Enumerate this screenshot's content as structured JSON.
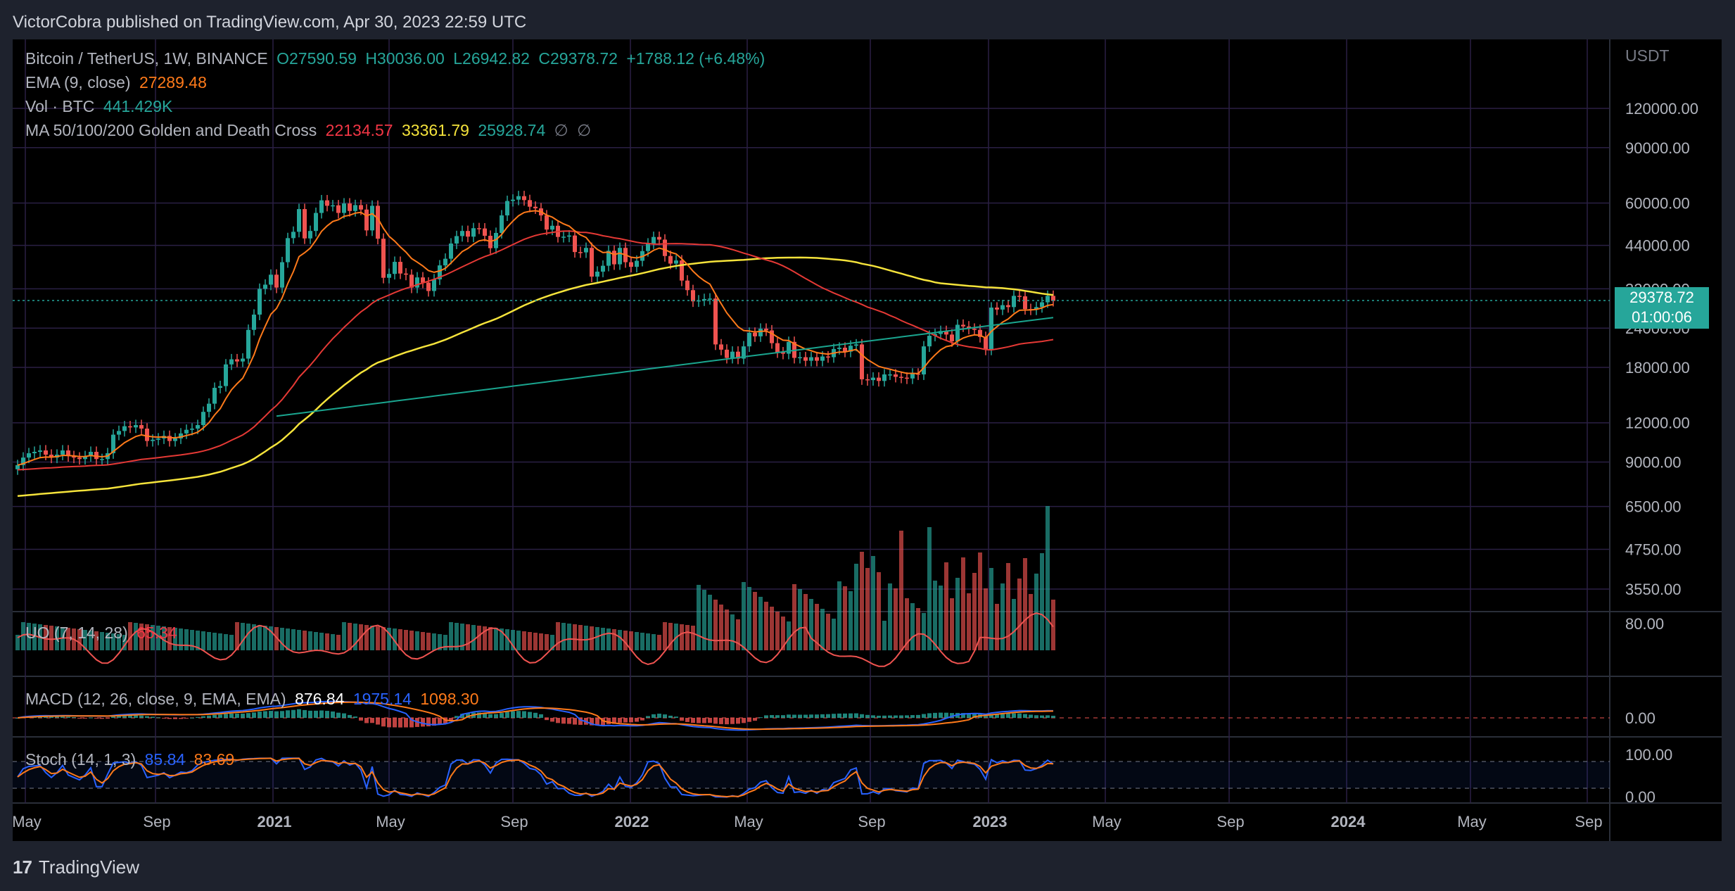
{
  "header": {
    "text": "VictorCobra published on TradingView.com, Apr 30, 2023 22:59 UTC"
  },
  "legend": {
    "symbol": "Bitcoin / TetherUS, 1W, BINANCE",
    "open": "O27590.59",
    "high": "H30036.00",
    "low": "L26942.82",
    "close": "C29378.72",
    "change": "+1788.12 (+6.48%)",
    "ema_label": "EMA (9, close)",
    "ema_value": "27289.48",
    "vol_label": "Vol · BTC",
    "vol_value": "441.429K",
    "ma_label": "MA 50/100/200 Golden and Death Cross",
    "ma50": "22134.57",
    "ma100": "33361.79",
    "ma200": "25928.74",
    "ma_extra1": "∅",
    "ma_extra2": "∅",
    "uo_label": "UO (7, 14, 28)",
    "uo_value": "65.34",
    "macd_label": "MACD (12, 26, close, 9, EMA, EMA)",
    "macd_hist": "876.84",
    "macd_line": "1975.14",
    "macd_signal": "1098.30",
    "stoch_label": "Stoch (14, 1, 3)",
    "stoch_k": "85.84",
    "stoch_d": "83.69"
  },
  "price_tag": {
    "price": "29378.72",
    "countdown": "01:00:06"
  },
  "footer": {
    "brand": "TradingView"
  },
  "colors": {
    "up": "#26a69a",
    "down": "#ef5350",
    "ema": "#ff7a1a",
    "ma50": "#e53935",
    "ma100": "#f5e33b",
    "ma200": "#1aa58f",
    "grid": "#2a1f44",
    "uo": "#ef5350",
    "macd": "#2962ff",
    "signal": "#ff7a1a",
    "stoch_k": "#2962ff",
    "stoch_d": "#ff7a1a"
  },
  "chart_data": {
    "type": "candlestick",
    "symbol": "Bitcoin / TetherUS",
    "interval": "1W",
    "exchange": "BINANCE",
    "currency": "USDT",
    "price_scale": "log",
    "grid": true,
    "price_ticks": [
      120000,
      90000,
      60000,
      44000,
      32000,
      24000,
      18000,
      12000,
      9000,
      6500,
      4750,
      3550
    ],
    "price_tick_labels": [
      "120000.00",
      "90000.00",
      "60000.00",
      "44000.00",
      "32000.00",
      "24000.00",
      "18000.00",
      "12000.00",
      "9000.00",
      "6500.00",
      "4750.00",
      "3550.00"
    ],
    "x_tick_labels": [
      "May",
      "Sep",
      "2021",
      "May",
      "Sep",
      "2022",
      "May",
      "Sep",
      "2023",
      "May",
      "Sep",
      "2024",
      "May",
      "Sep"
    ],
    "x_tick_bold": [
      false,
      false,
      true,
      false,
      false,
      true,
      false,
      false,
      true,
      false,
      false,
      true,
      false,
      false
    ],
    "close_series": [
      8800,
      9300,
      9600,
      9700,
      9800,
      9500,
      9300,
      9500,
      9800,
      9400,
      9300,
      9200,
      9400,
      9700,
      9200,
      9200,
      9600,
      11000,
      11300,
      11700,
      11600,
      11800,
      11500,
      10500,
      10600,
      10700,
      10900,
      10500,
      10700,
      11100,
      11400,
      11500,
      11800,
      13000,
      13800,
      15500,
      15700,
      18400,
      19100,
      18800,
      19200,
      23700,
      26500,
      32000,
      33000,
      35500,
      32300,
      38900,
      46400,
      48600,
      57400,
      46300,
      48900,
      55800,
      61200,
      58800,
      59000,
      55800,
      59800,
      56600,
      59100,
      57200,
      49100,
      58800,
      46200,
      34700,
      35700,
      39000,
      35800,
      35500,
      32300,
      34800,
      33500,
      31500,
      34300,
      38000,
      39900,
      44600,
      47100,
      48900,
      46900,
      49900,
      49800,
      47200,
      43100,
      48200,
      54800,
      60900,
      61500,
      63100,
      61300,
      58400,
      57700,
      54800,
      49400,
      50800,
      46800,
      46900,
      47300,
      41900,
      41800,
      43200,
      35000,
      36300,
      37900,
      42300,
      38300,
      43200,
      38900,
      37600,
      39300,
      42200,
      44600,
      46800,
      45900,
      40700,
      38500,
      39400,
      34000,
      31700,
      29200,
      29400,
      29700,
      29800,
      21300,
      20500,
      19300,
      20200,
      19200,
      21000,
      23200,
      22600,
      23900,
      23600,
      21500,
      20100,
      19900,
      21700,
      19300,
      19400,
      18900,
      19400,
      18900,
      19500,
      19400,
      20600,
      20800,
      20200,
      21100,
      21300,
      16500,
      16400,
      16700,
      16300,
      17100,
      17100,
      16800,
      16700,
      16600,
      17200,
      17100,
      21000,
      22700,
      23000,
      23500,
      22900,
      21800,
      24600,
      24300,
      23900,
      23700,
      22500,
      20500,
      27900,
      27500,
      28400,
      28000,
      30400,
      30300,
      27600,
      27500,
      28000,
      29000,
      30400,
      29300
    ],
    "series": [
      {
        "name": "EMA (9, close)",
        "last": 27289.48
      },
      {
        "name": "MA 50",
        "last": 22134.57
      },
      {
        "name": "MA 100",
        "last": 33361.79
      },
      {
        "name": "MA 200",
        "last": 25928.74
      }
    ],
    "volume_last": "441.429K",
    "uo": {
      "last": 65.34,
      "ticks": [
        "80.00"
      ]
    },
    "macd": {
      "hist": 876.84,
      "macd": 1975.14,
      "signal": 1098.3,
      "ticks": [
        "0.00"
      ]
    },
    "stoch": {
      "k": 85.84,
      "d": 83.69,
      "ticks": [
        "100.00",
        "0.00"
      ]
    },
    "last_price": 29378.72
  }
}
